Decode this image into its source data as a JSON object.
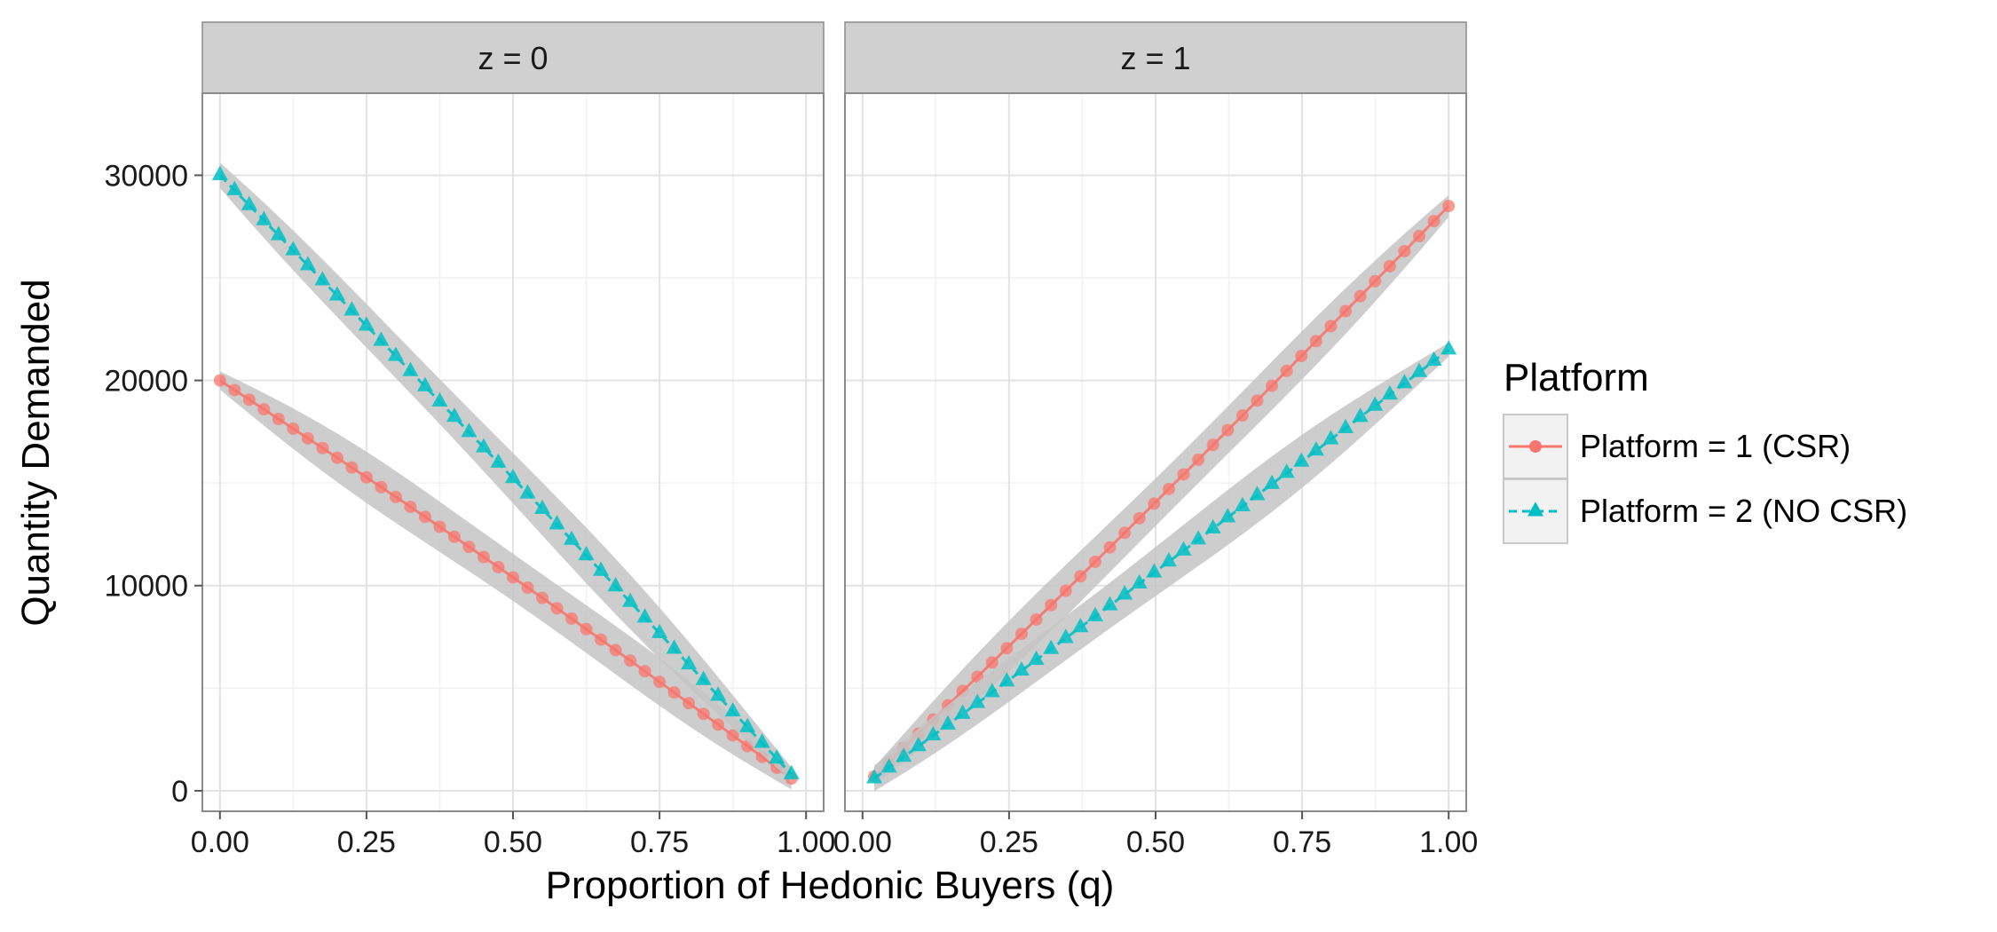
{
  "chart_data": {
    "type": "line",
    "xlabel": "Proportion of Hedonic Buyers (q)",
    "ylabel": "Quantity Demanded",
    "ylim": [
      -1000,
      34000
    ],
    "xlim": [
      -0.03,
      1.03
    ],
    "x_ticks": [
      0,
      0.25,
      0.5,
      0.75,
      1
    ],
    "x_tick_labels": [
      "0.00",
      "0.25",
      "0.50",
      "0.75",
      "1.00"
    ],
    "y_ticks": [
      0,
      10000,
      20000,
      30000
    ],
    "y_tick_labels": [
      "0",
      "10000",
      "20000",
      "30000"
    ],
    "grid": true,
    "ribbon_color": "#c4c4c4",
    "legend": {
      "title": "Platform",
      "placement": "right",
      "entries": [
        {
          "label": "Platform = 1 (CSR)",
          "color": "#F8766D",
          "marker": "circle",
          "line": "solid"
        },
        {
          "label": "Platform = 2 (NO CSR)",
          "color": "#00BFC4",
          "marker": "triangle",
          "line": "dashed"
        }
      ]
    },
    "panels": [
      {
        "strip": "z = 0",
        "series": [
          {
            "name": "Platform = 1 (CSR)",
            "x_start": 0.0,
            "x_end": 0.975,
            "n": 40,
            "y_start": 20000,
            "y_end": 600,
            "color": "#F8766D",
            "marker": "circle"
          },
          {
            "name": "Platform = 2 (NO CSR)",
            "x_start": 0.0,
            "x_end": 0.975,
            "n": 40,
            "y_start": 30000,
            "y_end": 800,
            "color": "#00BFC4",
            "marker": "triangle"
          }
        ]
      },
      {
        "strip": "z = 1",
        "series": [
          {
            "name": "Platform = 1 (CSR)",
            "x_start": 0.02,
            "x_end": 1.0,
            "n": 40,
            "y_start": 700,
            "y_end": 28500,
            "color": "#F8766D",
            "marker": "circle"
          },
          {
            "name": "Platform = 2 (NO CSR)",
            "x_start": 0.02,
            "x_end": 1.0,
            "n": 40,
            "y_start": 600,
            "y_end": 21500,
            "color": "#00BFC4",
            "marker": "triangle"
          }
        ]
      }
    ]
  }
}
